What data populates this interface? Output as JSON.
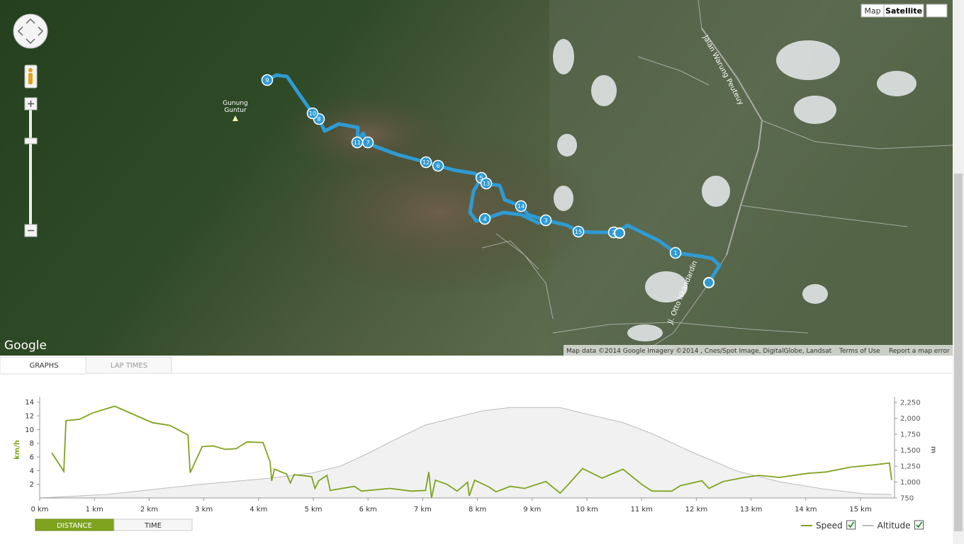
{
  "map": {
    "type_buttons": [
      "Map",
      "Satellite"
    ],
    "peak_label": [
      "Gunung",
      "Guntur"
    ],
    "roads": [
      "Jalan Warung Peuteuy",
      "Jl. Otto Iskandardin"
    ],
    "logo": "Google",
    "attribution": "Map data ©2014 Google Imagery ©2014 , Cnes/Spot Image, DigitalGlobe, Landsat",
    "terms": "Terms of Use",
    "report": "Report a map error",
    "markers": [
      "1",
      "2",
      "3",
      "4",
      "5",
      "6",
      "7",
      "8",
      "9",
      "10",
      "11",
      "12",
      "13",
      "14",
      "15"
    ]
  },
  "tabs": [
    "GRAPHS",
    "LAP TIMES"
  ],
  "x_mode_buttons": [
    "DISTANCE",
    "TIME"
  ],
  "chart_data": {
    "type": "line",
    "y_label": "km/h",
    "y2_label": "m",
    "legend": "lower right",
    "xlim": [
      0,
      15.57
    ],
    "xticks": [
      {
        "value": 0,
        "label": "0 km"
      },
      {
        "value": 1,
        "label": "1 km"
      },
      {
        "value": 2,
        "label": "2 km"
      },
      {
        "value": 3,
        "label": "3 km"
      },
      {
        "value": 4,
        "label": "4 km"
      },
      {
        "value": 5,
        "label": "5 km"
      },
      {
        "value": 6,
        "label": "6 km"
      },
      {
        "value": 7,
        "label": "7 km"
      },
      {
        "value": 8,
        "label": "8 km"
      },
      {
        "value": 9,
        "label": "9 km"
      },
      {
        "value": 10,
        "label": "10 km"
      },
      {
        "value": 11,
        "label": "11 km"
      },
      {
        "value": 12,
        "label": "12 km"
      },
      {
        "value": 13,
        "label": "13 km"
      },
      {
        "value": 14,
        "label": "14 km"
      },
      {
        "value": 15,
        "label": "15 km"
      }
    ],
    "ylim": [
      0,
      14.8
    ],
    "yticks": [
      2,
      4,
      6,
      8,
      10,
      12,
      14
    ],
    "y2lim": [
      750,
      2340
    ],
    "y2ticks": [
      750,
      {
        "value": 1000,
        "label": "1,000"
      },
      {
        "value": 1250,
        "label": "1,250"
      },
      {
        "value": 1500,
        "label": "1,500"
      },
      {
        "value": 1750,
        "label": "1,750"
      },
      {
        "value": 2000,
        "label": "2,000"
      },
      {
        "value": 2250,
        "label": "2,250"
      }
    ],
    "series": [
      {
        "name": "Speed",
        "color": "#7fa31f",
        "x": [
          0.22,
          0.44,
          0.48,
          0.73,
          0.96,
          1.37,
          2.06,
          2.38,
          2.71,
          2.75,
          2.97,
          3.17,
          3.39,
          3.59,
          3.79,
          4.08,
          4.21,
          4.24,
          4.29,
          4.51,
          4.58,
          4.65,
          4.97,
          5.03,
          5.1,
          5.25,
          5.31,
          5.75,
          5.88,
          6.4,
          6.79,
          7.05,
          7.11,
          7.16,
          7.23,
          7.44,
          7.63,
          7.82,
          7.85,
          7.95,
          8.21,
          8.34,
          8.6,
          8.86,
          9.25,
          9.51,
          9.64,
          9.92,
          10.28,
          10.66,
          11.0,
          11.19,
          11.55,
          11.71,
          12.1,
          12.23,
          12.49,
          12.88,
          13.14,
          13.52,
          14.04,
          14.37,
          14.82,
          15.2,
          15.53,
          15.57
        ],
        "values": [
          6.6,
          3.9,
          11.3,
          11.5,
          12.4,
          13.4,
          11.0,
          10.6,
          9.2,
          3.7,
          7.5,
          7.6,
          7.1,
          7.2,
          8.2,
          8.1,
          5.3,
          2.5,
          4.2,
          3.5,
          2.2,
          3.4,
          3.1,
          1.4,
          2.5,
          3.3,
          1.1,
          1.7,
          1.0,
          1.4,
          1.0,
          1.1,
          3.8,
          0,
          2.6,
          2.0,
          1.0,
          2.3,
          0.3,
          2.6,
          1.6,
          0.9,
          1.7,
          1.4,
          2.4,
          0.7,
          1.8,
          4.3,
          2.9,
          4.2,
          2.0,
          1.0,
          1.0,
          1.8,
          2.5,
          1.4,
          2.4,
          3.0,
          3.3,
          3.0,
          3.6,
          3.8,
          4.5,
          4.8,
          5.1,
          2.6
        ]
      },
      {
        "name": "Altitude",
        "color": "#bbbbbb",
        "axis": "y2",
        "area": true,
        "x": [
          0,
          1.22,
          2.9,
          4.2,
          4.97,
          5.5,
          6.0,
          6.5,
          7.05,
          7.56,
          8.08,
          8.6,
          9.5,
          10.03,
          10.67,
          11.19,
          11.97,
          12.75,
          13.52,
          14.3,
          15.08,
          15.57
        ],
        "values": [
          750,
          805,
          960,
          1060,
          1140,
          1250,
          1450,
          1670,
          1895,
          2005,
          2115,
          2170,
          2170,
          2060,
          1930,
          1760,
          1450,
          1170,
          1005,
          895,
          815,
          805
        ]
      }
    ]
  }
}
